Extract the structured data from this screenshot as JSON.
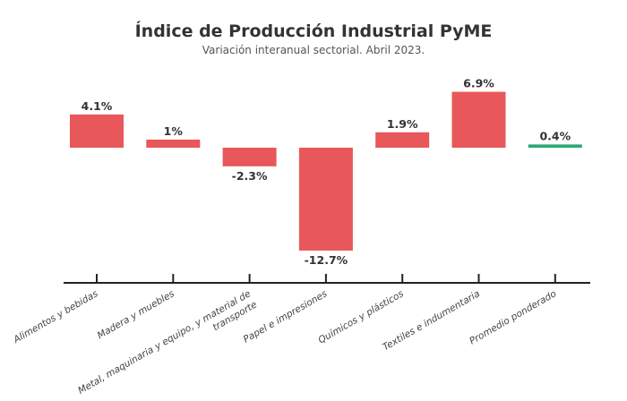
{
  "chart_data": {
    "type": "bar",
    "title": "Índice de Producción Industrial PyME",
    "subtitle": "Variación interanual sectorial. Abril 2023.",
    "categories": [
      [
        "Alimentos y bebidas"
      ],
      [
        "Madera y muebles"
      ],
      [
        "Metal, maquinaria y equipo, y material de",
        "transporte"
      ],
      [
        "Papel e impresiones"
      ],
      [
        "Químicos y plásticos"
      ],
      [
        "Textiles e indumentaria"
      ],
      [
        "Promedio ponderado"
      ]
    ],
    "values": [
      4.1,
      1,
      -2.3,
      -12.7,
      1.9,
      6.9,
      0.4
    ],
    "data_labels": [
      "4.1%",
      "1%",
      "-2.3%",
      "-12.7%",
      "1.9%",
      "6.9%",
      "0.4%"
    ],
    "colors": [
      "#e8575a",
      "#e8575a",
      "#e8575a",
      "#e8575a",
      "#e8575a",
      "#e8575a",
      "#2aa876"
    ],
    "xlabel": "",
    "ylabel": "",
    "grid": false
  }
}
